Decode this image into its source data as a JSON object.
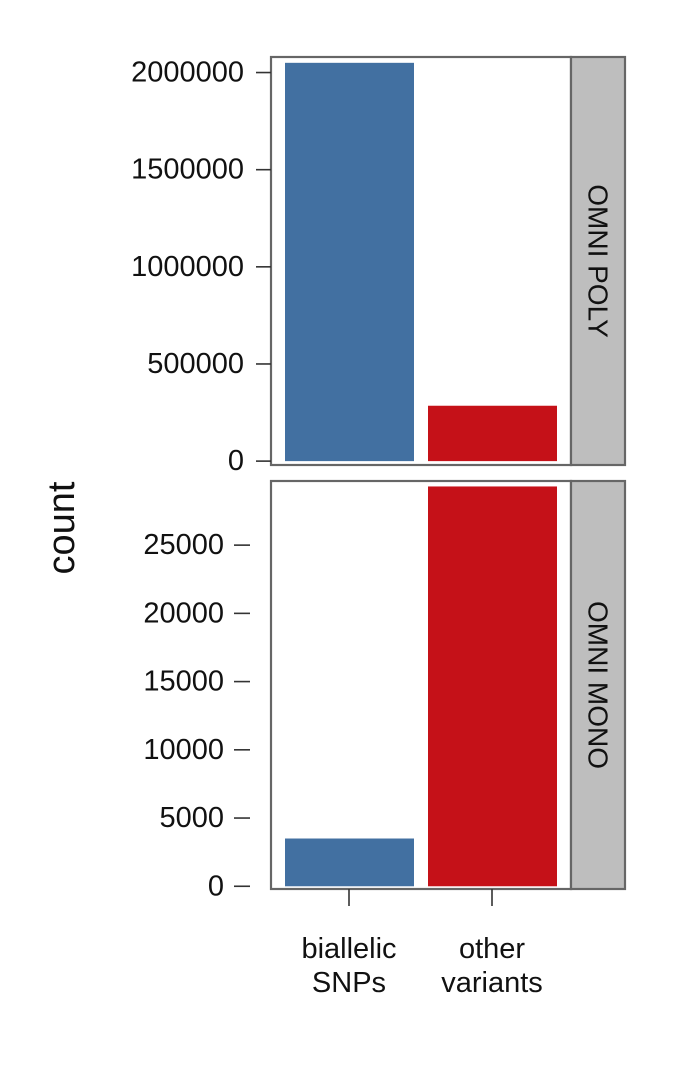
{
  "chart_data": {
    "type": "bar",
    "ylabel": "count",
    "categories": [
      "biallelic\nSNPs",
      "other\nvariants"
    ],
    "category_colors": [
      "#4270a1",
      "#c51118"
    ],
    "strip_color": "#bebebe",
    "panels": [
      {
        "name": "OMNI POLY",
        "values": [
          2050000,
          285000
        ],
        "ylim": [
          -20000,
          2080000
        ],
        "yticks": [
          0,
          500000,
          1000000,
          1500000,
          2000000
        ],
        "ytick_labels": [
          "0",
          "500000",
          "1000000",
          "1500000",
          "2000000"
        ]
      },
      {
        "name": "OMNI MONO",
        "values": [
          3500,
          29300
        ],
        "ylim": [
          -200,
          29700
        ],
        "yticks": [
          0,
          5000,
          10000,
          15000,
          20000,
          25000
        ],
        "ytick_labels": [
          "0",
          "5000",
          "10000",
          "15000",
          "20000",
          "25000"
        ]
      }
    ]
  }
}
